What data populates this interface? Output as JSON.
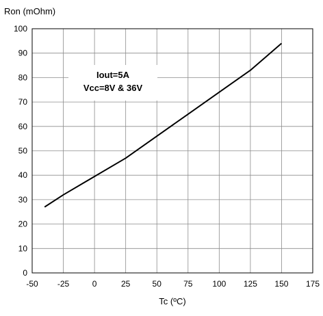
{
  "chart_data": {
    "type": "line",
    "ylabel": "Ron (mOhm)",
    "xlabel": "Tc (ºC)",
    "xlim": [
      -50,
      175
    ],
    "ylim": [
      0,
      100
    ],
    "x_ticks": [
      "-50",
      "-25",
      "0",
      "25",
      "50",
      "75",
      "100",
      "125",
      "150",
      "175"
    ],
    "y_ticks": [
      "0",
      "10",
      "20",
      "30",
      "40",
      "50",
      "60",
      "70",
      "80",
      "90",
      "100"
    ],
    "grid": true,
    "annotation": [
      "Iout=5A",
      "Vcc=8V & 36V"
    ],
    "series": [
      {
        "x": [
          -40,
          -25,
          0,
          25,
          50,
          75,
          100,
          125,
          150
        ],
        "y": [
          27,
          32,
          39.5,
          47,
          56,
          65,
          74,
          83,
          94
        ]
      }
    ]
  }
}
